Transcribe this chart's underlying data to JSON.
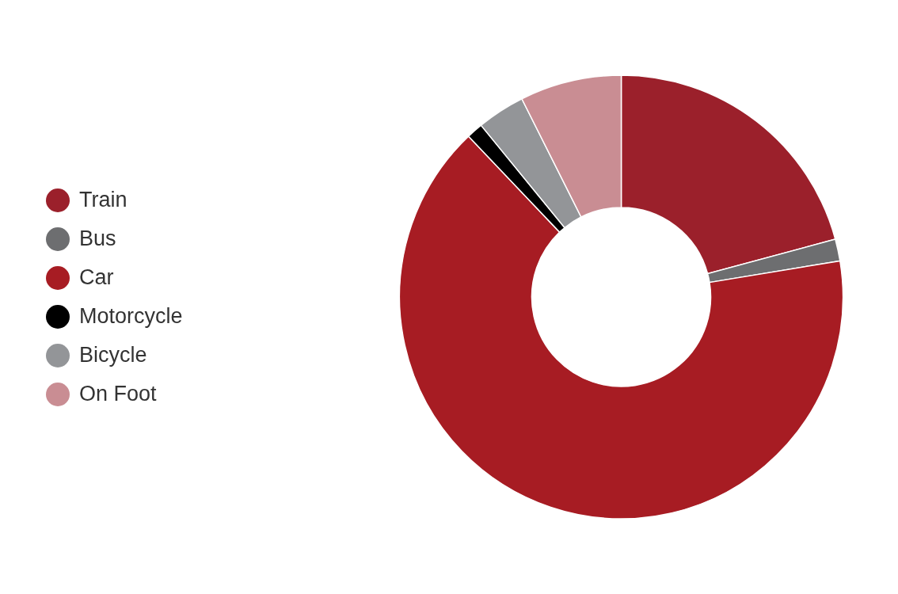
{
  "chart_data": {
    "type": "donut",
    "categories": [
      "Train",
      "Bus",
      "Car",
      "Motorcycle",
      "Bicycle",
      "On Foot"
    ],
    "values": [
      20.8,
      1.6,
      65.5,
      1.2,
      3.5,
      7.4
    ],
    "colors": [
      "#9b202b",
      "#6d6e70",
      "#a71c23",
      "#000000",
      "#939598",
      "#c98d93"
    ],
    "legend": "left"
  }
}
